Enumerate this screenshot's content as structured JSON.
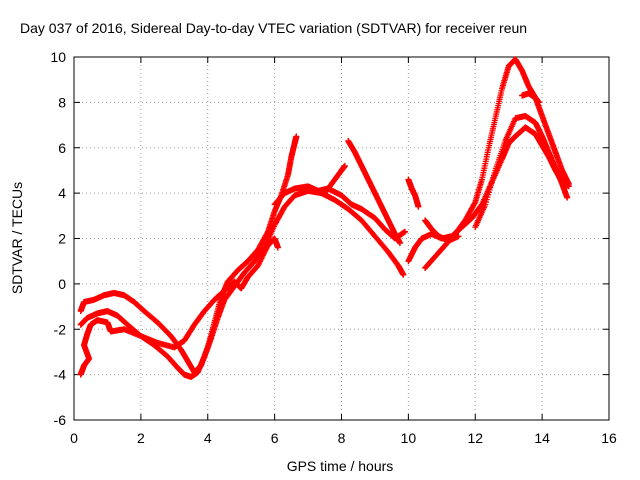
{
  "chart_data": {
    "type": "scatter",
    "title": "Day 037 of 2016, Sidereal Day-to-day VTEC variation (SDTVAR) for receiver reun",
    "xlabel": "GPS time / hours",
    "ylabel": "SDTVAR / TECUs",
    "xlim": [
      0,
      16
    ],
    "ylim": [
      -6,
      10
    ],
    "xticks": [
      "0",
      "2",
      "4",
      "6",
      "8",
      "10",
      "12",
      "14",
      "16"
    ],
    "yticks": [
      "-6",
      "-4",
      "-2",
      "0",
      "2",
      "4",
      "6",
      "8",
      "10"
    ],
    "grid": true,
    "marker": "plus",
    "color": "#ff0000",
    "series": [
      {
        "points": [
          [
            0.2,
            -4.0
          ],
          [
            0.3,
            -3.6
          ],
          [
            0.45,
            -3.3
          ],
          [
            0.3,
            -2.7
          ],
          [
            0.4,
            -2.2
          ],
          [
            0.5,
            -1.8
          ],
          [
            0.7,
            -1.6
          ],
          [
            1.0,
            -1.7
          ],
          [
            1.1,
            -2.1
          ],
          [
            1.5,
            -2.0
          ],
          [
            2.0,
            -2.3
          ],
          [
            2.5,
            -2.6
          ],
          [
            3.0,
            -2.8
          ],
          [
            3.3,
            -2.5
          ],
          [
            3.6,
            -1.8
          ],
          [
            3.9,
            -1.2
          ],
          [
            4.2,
            -0.7
          ],
          [
            4.5,
            -0.3
          ],
          [
            4.8,
            0.1
          ],
          [
            5.0,
            -0.2
          ],
          [
            5.2,
            0.3
          ],
          [
            5.5,
            0.8
          ],
          [
            5.8,
            1.7
          ],
          [
            6.0,
            2.0
          ],
          [
            6.1,
            1.6
          ]
        ]
      },
      {
        "points": [
          [
            0.2,
            -1.2
          ],
          [
            0.3,
            -0.8
          ],
          [
            0.6,
            -0.7
          ],
          [
            0.9,
            -0.5
          ],
          [
            1.2,
            -0.4
          ],
          [
            1.5,
            -0.5
          ],
          [
            1.8,
            -0.8
          ],
          [
            2.1,
            -1.2
          ],
          [
            2.5,
            -1.7
          ],
          [
            2.9,
            -2.3
          ],
          [
            3.2,
            -2.9
          ],
          [
            3.4,
            -3.4
          ],
          [
            3.6,
            -3.9
          ],
          [
            3.8,
            -3.6
          ],
          [
            4.0,
            -2.8
          ],
          [
            4.2,
            -1.7
          ],
          [
            4.4,
            -0.6
          ],
          [
            4.6,
            0.1
          ],
          [
            4.9,
            0.6
          ],
          [
            5.2,
            1.0
          ],
          [
            5.5,
            1.5
          ],
          [
            5.8,
            2.3
          ],
          [
            6.0,
            3.2
          ],
          [
            6.2,
            3.9
          ],
          [
            6.4,
            4.8
          ],
          [
            6.5,
            5.6
          ],
          [
            6.6,
            6.2
          ],
          [
            6.65,
            6.5
          ]
        ]
      },
      {
        "points": [
          [
            0.2,
            -1.8
          ],
          [
            0.4,
            -1.5
          ],
          [
            0.7,
            -1.3
          ],
          [
            1.0,
            -1.2
          ],
          [
            1.3,
            -1.4
          ],
          [
            1.6,
            -1.8
          ],
          [
            2.0,
            -2.3
          ],
          [
            2.4,
            -2.7
          ],
          [
            2.8,
            -3.2
          ],
          [
            3.1,
            -3.7
          ],
          [
            3.3,
            -4.0
          ],
          [
            3.5,
            -4.1
          ],
          [
            3.7,
            -3.9
          ],
          [
            3.9,
            -3.2
          ],
          [
            4.1,
            -2.4
          ],
          [
            4.3,
            -1.5
          ],
          [
            4.5,
            -0.7
          ],
          [
            4.8,
            -0.1
          ],
          [
            5.1,
            0.5
          ],
          [
            5.4,
            1.0
          ],
          [
            5.7,
            1.6
          ],
          [
            6.0,
            2.6
          ],
          [
            6.3,
            3.4
          ],
          [
            6.6,
            3.9
          ],
          [
            7.0,
            4.1
          ],
          [
            7.4,
            4.0
          ],
          [
            7.8,
            3.7
          ],
          [
            8.2,
            3.3
          ],
          [
            8.6,
            2.8
          ],
          [
            9.0,
            2.1
          ],
          [
            9.4,
            1.4
          ],
          [
            9.7,
            0.8
          ],
          [
            9.85,
            0.4
          ]
        ]
      },
      {
        "points": [
          [
            6.0,
            3.5
          ],
          [
            6.3,
            4.0
          ],
          [
            6.6,
            4.2
          ],
          [
            7.0,
            4.3
          ],
          [
            7.3,
            4.1
          ],
          [
            7.6,
            4.2
          ],
          [
            8.0,
            3.9
          ],
          [
            8.3,
            3.5
          ],
          [
            8.6,
            3.3
          ],
          [
            9.0,
            2.9
          ],
          [
            9.3,
            2.4
          ],
          [
            9.6,
            2.0
          ],
          [
            9.9,
            2.3
          ]
        ]
      },
      {
        "points": [
          [
            7.5,
            4.0
          ],
          [
            7.8,
            4.6
          ],
          [
            8.0,
            5.0
          ],
          [
            8.1,
            5.2
          ]
        ]
      },
      {
        "points": [
          [
            8.2,
            6.3
          ],
          [
            8.4,
            5.8
          ],
          [
            8.6,
            5.2
          ],
          [
            8.8,
            4.6
          ],
          [
            9.0,
            4.0
          ],
          [
            9.2,
            3.4
          ],
          [
            9.4,
            2.8
          ],
          [
            9.6,
            2.2
          ],
          [
            9.75,
            1.8
          ]
        ]
      },
      {
        "points": [
          [
            10.0,
            4.6
          ],
          [
            10.1,
            4.2
          ],
          [
            10.2,
            3.9
          ],
          [
            10.3,
            3.4
          ]
        ]
      },
      {
        "points": [
          [
            10.0,
            1.0
          ],
          [
            10.2,
            1.6
          ],
          [
            10.4,
            2.0
          ],
          [
            10.7,
            2.2
          ],
          [
            11.0,
            2.0
          ],
          [
            11.3,
            2.1
          ],
          [
            11.6,
            2.5
          ],
          [
            11.9,
            2.9
          ],
          [
            12.2,
            3.5
          ],
          [
            12.5,
            4.5
          ],
          [
            12.8,
            5.5
          ],
          [
            13.0,
            6.2
          ],
          [
            13.2,
            6.5
          ],
          [
            13.5,
            6.9
          ],
          [
            13.8,
            6.6
          ],
          [
            14.0,
            6.1
          ],
          [
            14.2,
            5.6
          ],
          [
            14.4,
            5.0
          ],
          [
            14.6,
            4.5
          ],
          [
            14.8,
            4.3
          ]
        ]
      },
      {
        "points": [
          [
            10.5,
            0.7
          ],
          [
            10.8,
            1.2
          ],
          [
            11.1,
            1.7
          ],
          [
            11.4,
            2.2
          ],
          [
            11.7,
            2.8
          ],
          [
            12.0,
            3.6
          ],
          [
            12.2,
            4.6
          ],
          [
            12.4,
            6.0
          ],
          [
            12.6,
            7.3
          ],
          [
            12.8,
            8.6
          ],
          [
            13.0,
            9.6
          ],
          [
            13.2,
            9.9
          ],
          [
            13.4,
            9.4
          ],
          [
            13.6,
            8.7
          ],
          [
            13.8,
            8.2
          ],
          [
            14.0,
            7.4
          ],
          [
            14.2,
            6.6
          ],
          [
            14.4,
            5.8
          ],
          [
            14.6,
            5.0
          ],
          [
            14.8,
            4.4
          ]
        ]
      },
      {
        "points": [
          [
            12.0,
            2.5
          ],
          [
            12.3,
            3.5
          ],
          [
            12.6,
            5.0
          ],
          [
            12.9,
            6.3
          ],
          [
            13.2,
            7.3
          ],
          [
            13.5,
            7.4
          ],
          [
            13.8,
            7.1
          ],
          [
            14.0,
            6.5
          ],
          [
            14.2,
            5.8
          ],
          [
            14.4,
            5.1
          ],
          [
            14.6,
            4.4
          ],
          [
            14.75,
            3.8
          ]
        ]
      },
      {
        "points": [
          [
            13.4,
            8.3
          ],
          [
            13.6,
            8.4
          ],
          [
            13.8,
            8.2
          ],
          [
            13.9,
            8.0
          ]
        ]
      },
      {
        "points": [
          [
            10.5,
            2.8
          ],
          [
            10.7,
            2.4
          ],
          [
            10.9,
            2.1
          ],
          [
            11.2,
            1.9
          ],
          [
            11.5,
            2.1
          ]
        ]
      }
    ]
  }
}
